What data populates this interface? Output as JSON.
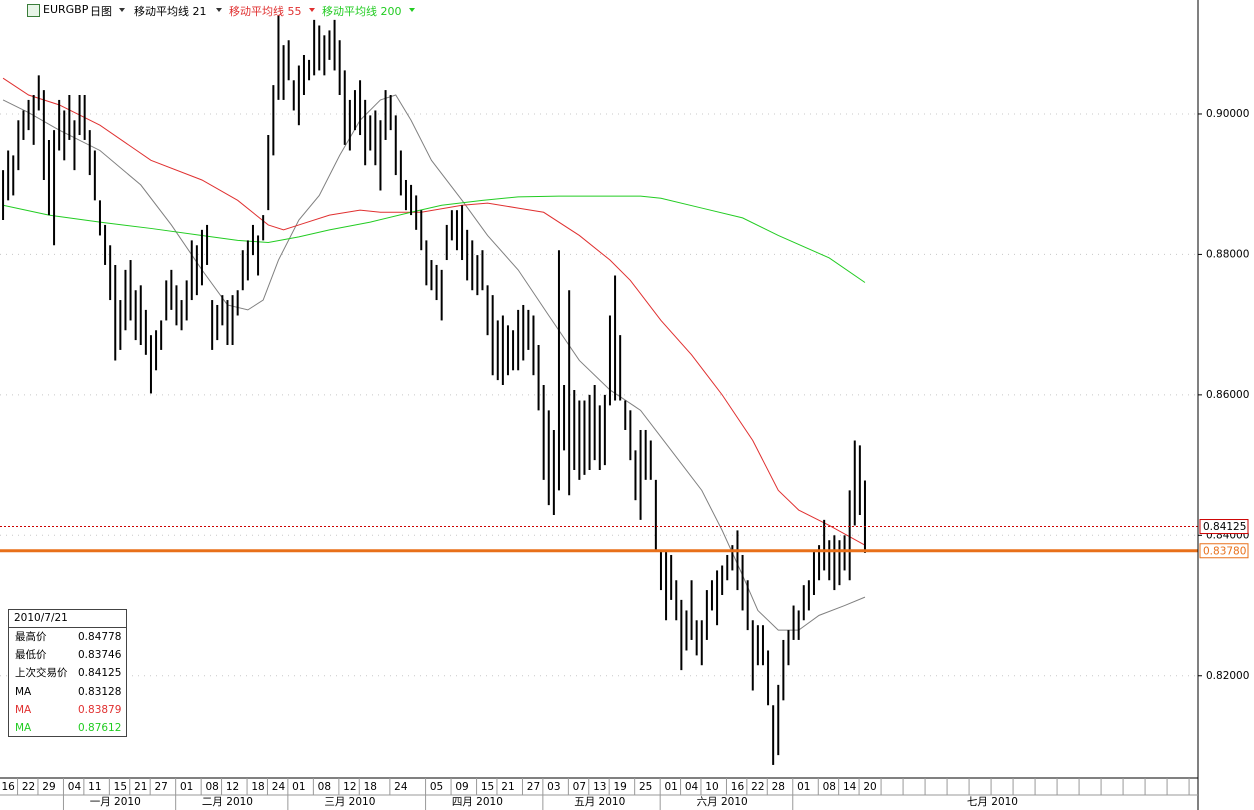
{
  "header": {
    "symbol": "EURGBP",
    "timeframe": "日图"
  },
  "chart_data": {
    "type": "ohlc",
    "color": "#000000",
    "high": [
      0.892,
      0.8948,
      0.8941,
      0.8991,
      0.9005,
      0.902,
      0.9027,
      0.9055,
      0.9034,
      0.8963,
      0.8977,
      0.902,
      0.9005,
      0.9027,
      0.8991,
      0.9027,
      0.9027,
      0.8977,
      0.8948,
      0.8877,
      0.8842,
      0.8813,
      0.8785,
      0.8735,
      0.8778,
      0.8792,
      0.8749,
      0.8756,
      0.8721,
      0.8685,
      0.8692,
      0.8706,
      0.8763,
      0.8778,
      0.8756,
      0.8735,
      0.8763,
      0.882,
      0.8813,
      0.8835,
      0.8842,
      0.8735,
      0.8728,
      0.8742,
      0.8735,
      0.8742,
      0.8749,
      0.8806,
      0.882,
      0.8842,
      0.8827,
      0.8856,
      0.897,
      0.9041,
      0.9141,
      0.9098,
      0.9105,
      0.9048,
      0.9069,
      0.9084,
      0.9077,
      0.9134,
      0.9126,
      0.9112,
      0.9119,
      0.9134,
      0.9105,
      0.9062,
      0.902,
      0.9034,
      0.9048,
      0.902,
      0.8998,
      0.9005,
      0.8991,
      0.9034,
      0.9027,
      0.8998,
      0.8948,
      0.8906,
      0.8899,
      0.8884,
      0.8863,
      0.882,
      0.8792,
      0.8785,
      0.8778,
      0.8842,
      0.8863,
      0.8863,
      0.887,
      0.8835,
      0.882,
      0.8799,
      0.8806,
      0.8756,
      0.8742,
      0.8706,
      0.8713,
      0.8699,
      0.8692,
      0.8721,
      0.8728,
      0.8721,
      0.8713,
      0.8671,
      0.8614,
      0.8578,
      0.855,
      0.8806,
      0.8614,
      0.8749,
      0.8607,
      0.8592,
      0.8592,
      0.86,
      0.8614,
      0.8585,
      0.86,
      0.8713,
      0.877,
      0.8685,
      0.8592,
      0.8578,
      0.8521,
      0.855,
      0.855,
      0.8535,
      0.8479,
      0.8379,
      0.8379,
      0.8372,
      0.8336,
      0.8308,
      0.8293,
      0.8336,
      0.8279,
      0.8279,
      0.8322,
      0.8336,
      0.835,
      0.8357,
      0.8372,
      0.8386,
      0.8407,
      0.8372,
      0.8336,
      0.8279,
      0.8272,
      0.8272,
      0.8236,
      0.8158,
      0.8187,
      0.8251,
      0.8265,
      0.83,
      0.8293,
      0.8329,
      0.8336,
      0.8379,
      0.8386,
      0.8422,
      0.8393,
      0.84,
      0.8393,
      0.84,
      0.8464,
      0.8535,
      0.8528,
      0.8478
    ],
    "low": [
      0.8849,
      0.8877,
      0.8884,
      0.892,
      0.8963,
      0.8977,
      0.8956,
      0.9005,
      0.8906,
      0.8856,
      0.8813,
      0.8948,
      0.8934,
      0.8963,
      0.892,
      0.897,
      0.8963,
      0.8913,
      0.8877,
      0.8827,
      0.8785,
      0.8735,
      0.8649,
      0.8664,
      0.8692,
      0.8706,
      0.8678,
      0.8671,
      0.8657,
      0.8602,
      0.8635,
      0.8664,
      0.8706,
      0.8721,
      0.8699,
      0.8692,
      0.8706,
      0.8735,
      0.8742,
      0.8756,
      0.8785,
      0.8664,
      0.8678,
      0.8699,
      0.8671,
      0.8671,
      0.8713,
      0.8749,
      0.8763,
      0.8799,
      0.877,
      0.882,
      0.8863,
      0.8941,
      0.902,
      0.902,
      0.9048,
      0.9005,
      0.8984,
      0.9027,
      0.9048,
      0.9055,
      0.9062,
      0.9055,
      0.9077,
      0.9062,
      0.9027,
      0.8956,
      0.8948,
      0.8977,
      0.897,
      0.8927,
      0.8948,
      0.8927,
      0.8891,
      0.8963,
      0.8977,
      0.8913,
      0.8884,
      0.8863,
      0.8856,
      0.8835,
      0.8806,
      0.8756,
      0.8749,
      0.8735,
      0.8706,
      0.8792,
      0.882,
      0.8806,
      0.8792,
      0.8763,
      0.8749,
      0.8742,
      0.8749,
      0.8685,
      0.8628,
      0.8621,
      0.8614,
      0.8628,
      0.8635,
      0.8635,
      0.8649,
      0.8664,
      0.8628,
      0.8578,
      0.8479,
      0.8443,
      0.8429,
      0.8464,
      0.8521,
      0.8457,
      0.8493,
      0.8479,
      0.8486,
      0.8493,
      0.8507,
      0.8493,
      0.85,
      0.8585,
      0.8592,
      0.8592,
      0.855,
      0.8507,
      0.845,
      0.8422,
      0.8479,
      0.8479,
      0.8379,
      0.8322,
      0.8279,
      0.8308,
      0.8279,
      0.8208,
      0.8236,
      0.8251,
      0.8229,
      0.8215,
      0.8251,
      0.8293,
      0.8272,
      0.8315,
      0.8336,
      0.835,
      0.8322,
      0.8293,
      0.8265,
      0.8179,
      0.8215,
      0.8215,
      0.8158,
      0.8073,
      0.8087,
      0.8165,
      0.8215,
      0.8251,
      0.8251,
      0.8279,
      0.8293,
      0.8315,
      0.8336,
      0.835,
      0.8336,
      0.8322,
      0.8329,
      0.835,
      0.8336,
      0.8414,
      0.8429,
      0.8375
    ],
    "series": [
      {
        "name": "移动平均线 21",
        "color": "#808080",
        "x": [
          0,
          5,
          11,
          19,
          27,
          33,
          39,
          44,
          48,
          51,
          54,
          58,
          62,
          66,
          70,
          74,
          77,
          80,
          84,
          90,
          95,
          101,
          107,
          113,
          119,
          125,
          131,
          137,
          141,
          145,
          148,
          152,
          156,
          160,
          165,
          169
        ],
        "values": [
          0.902,
          0.9002,
          0.8977,
          0.8948,
          0.8899,
          0.8842,
          0.8778,
          0.8728,
          0.8721,
          0.8735,
          0.8792,
          0.8849,
          0.8884,
          0.8941,
          0.8991,
          0.902,
          0.9027,
          0.8991,
          0.8934,
          0.8877,
          0.8827,
          0.8778,
          0.8713,
          0.8649,
          0.8607,
          0.8578,
          0.8521,
          0.8464,
          0.8407,
          0.8343,
          0.8293,
          0.8265,
          0.8265,
          0.8286,
          0.83,
          0.8312
        ]
      },
      {
        "name": "移动平均线 55",
        "color": "#e03030",
        "x": [
          0,
          5,
          11,
          19,
          29,
          39,
          46,
          52,
          55,
          58,
          64,
          70,
          74,
          82,
          90,
          95,
          101,
          106,
          113,
          119,
          123,
          129,
          135,
          141,
          147,
          152,
          156,
          162,
          169
        ],
        "values": [
          0.9051,
          0.9027,
          0.9013,
          0.8984,
          0.8934,
          0.8906,
          0.8877,
          0.8842,
          0.8835,
          0.8842,
          0.8856,
          0.8863,
          0.886,
          0.886,
          0.887,
          0.8873,
          0.8866,
          0.886,
          0.8827,
          0.8792,
          0.8763,
          0.8706,
          0.8657,
          0.86,
          0.8535,
          0.8464,
          0.8436,
          0.8414,
          0.8386
        ]
      },
      {
        "name": "移动平均线 200",
        "color": "#22cc22",
        "x": [
          0,
          9,
          19,
          29,
          39,
          46,
          52,
          58,
          64,
          72,
          80,
          86,
          94,
          101,
          109,
          117,
          125,
          129,
          137,
          145,
          152,
          162,
          169
        ],
        "values": [
          0.887,
          0.8856,
          0.8846,
          0.8837,
          0.8827,
          0.882,
          0.8817,
          0.8825,
          0.8835,
          0.8846,
          0.886,
          0.887,
          0.8877,
          0.8882,
          0.8883,
          0.8883,
          0.8883,
          0.888,
          0.8866,
          0.8852,
          0.8827,
          0.8795,
          0.876
        ]
      }
    ],
    "xlim": [
      -0.6,
      234.3
    ],
    "ylim": [
      0.80544,
      0.91623
    ],
    "yticks": [
      {
        "value": 0.82,
        "label": "0.82000"
      },
      {
        "value": 0.84,
        "label": "0.84000"
      },
      {
        "value": 0.86,
        "label": "0.86000"
      },
      {
        "value": 0.88,
        "label": "0.88000"
      },
      {
        "value": 0.9,
        "label": "0.90000"
      }
    ],
    "grid": true,
    "xticks": [
      {
        "value": 1,
        "label": "16"
      },
      {
        "value": 5,
        "label": "22"
      },
      {
        "value": 9,
        "label": "29"
      },
      {
        "value": 14,
        "label": "04"
      },
      {
        "value": 18,
        "label": "11"
      },
      {
        "value": 23,
        "label": "15"
      },
      {
        "value": 27,
        "label": "21"
      },
      {
        "value": 31,
        "label": "27"
      },
      {
        "value": 36,
        "label": "01"
      },
      {
        "value": 41,
        "label": "08"
      },
      {
        "value": 45,
        "label": "12"
      },
      {
        "value": 50,
        "label": "18"
      },
      {
        "value": 54,
        "label": "24"
      },
      {
        "value": 58,
        "label": "01"
      },
      {
        "value": 63,
        "label": "08"
      },
      {
        "value": 68,
        "label": "12"
      },
      {
        "value": 72,
        "label": "18"
      },
      {
        "value": 78,
        "label": "24"
      },
      {
        "value": 85,
        "label": "05"
      },
      {
        "value": 90,
        "label": "09"
      },
      {
        "value": 95,
        "label": "15"
      },
      {
        "value": 99,
        "label": "21"
      },
      {
        "value": 104,
        "label": "27"
      },
      {
        "value": 108,
        "label": "03"
      },
      {
        "value": 113,
        "label": "07"
      },
      {
        "value": 117,
        "label": "13"
      },
      {
        "value": 121,
        "label": "19"
      },
      {
        "value": 126,
        "label": "25"
      },
      {
        "value": 131,
        "label": "01"
      },
      {
        "value": 135,
        "label": "04"
      },
      {
        "value": 139,
        "label": "10"
      },
      {
        "value": 144,
        "label": "16"
      },
      {
        "value": 148,
        "label": "22"
      },
      {
        "value": 152,
        "label": "28"
      },
      {
        "value": 157,
        "label": "01"
      },
      {
        "value": 162,
        "label": "08"
      },
      {
        "value": 166,
        "label": "14"
      },
      {
        "value": 170,
        "label": "20"
      }
    ],
    "month_labels": [
      {
        "value": 22,
        "label": "一月 2010"
      },
      {
        "value": 44,
        "label": "二月 2010"
      },
      {
        "value": 68,
        "label": "三月 2010"
      },
      {
        "value": 93,
        "label": "四月 2010"
      },
      {
        "value": 117,
        "label": "五月 2010"
      },
      {
        "value": 141,
        "label": "六月 2010"
      },
      {
        "value": 194,
        "label": "七月 2010"
      }
    ],
    "price_lines": [
      {
        "value": 0.84125,
        "label": "0.84125",
        "color": "#cc0000",
        "style": "dotted"
      },
      {
        "value": 0.8378,
        "label": "0.83780",
        "color": "#e8701a",
        "style": "solid"
      }
    ]
  },
  "info_panel": {
    "date": "2010/7/21",
    "rows": [
      {
        "label": "最高价",
        "value": "0.84778",
        "color": "#000000"
      },
      {
        "label": "最低价",
        "value": "0.83746",
        "color": "#000000"
      },
      {
        "label": "上次交易价",
        "value": "0.84125",
        "color": "#000000"
      },
      {
        "label": "MA",
        "value": "0.83128",
        "color": "#000000"
      },
      {
        "label": "MA",
        "value": "0.83879",
        "color": "#e03030"
      },
      {
        "label": "MA",
        "value": "0.87612",
        "color": "#22cc22"
      }
    ]
  }
}
